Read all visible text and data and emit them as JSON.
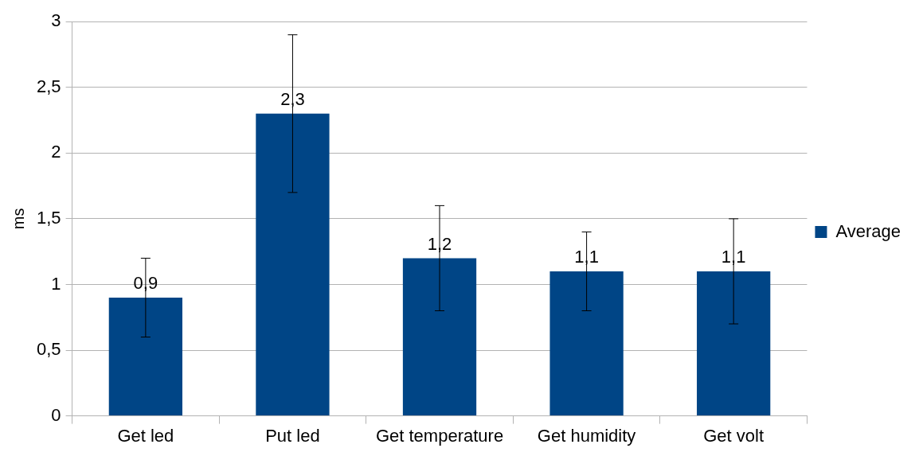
{
  "chart_data": {
    "type": "bar",
    "ylabel": "ms",
    "categories": [
      "Get led",
      "Put led",
      "Get temperature",
      "Get humidity",
      "Get volt"
    ],
    "series": [
      {
        "name": "Average",
        "color": "#004586",
        "values": [
          0.9,
          2.3,
          1.2,
          1.1,
          1.1
        ],
        "errors": [
          0.3,
          0.6,
          0.4,
          0.3,
          0.4
        ],
        "value_labels": [
          "0,9",
          "2,3",
          "1,2",
          "1,1",
          "1,1"
        ]
      }
    ],
    "ylim": [
      0,
      3
    ],
    "yticks": [
      0,
      {
        "value": 0.5,
        "label": "0,5"
      },
      1,
      {
        "value": 1.5,
        "label": "1,5"
      },
      2,
      {
        "value": 2.5,
        "label": "2,5"
      },
      3
    ],
    "grid": "y",
    "legend": "right"
  }
}
